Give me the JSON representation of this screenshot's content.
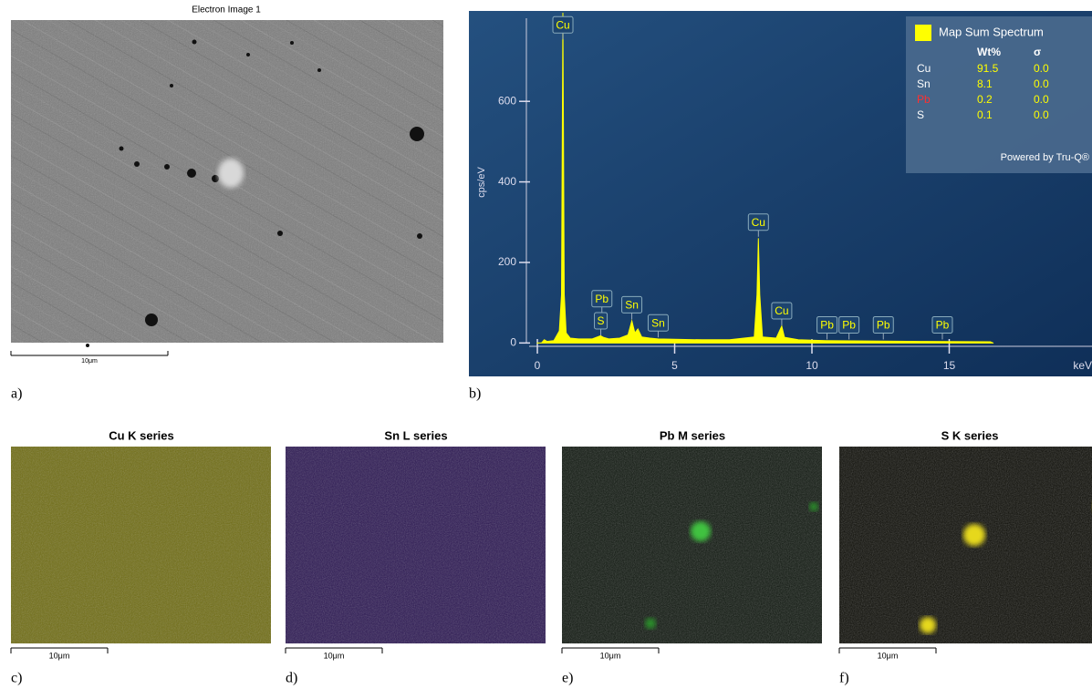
{
  "panel_a": {
    "label": "a)",
    "title": "Electron Image 1",
    "scale_bar": "10μm"
  },
  "panel_b": {
    "label": "b)"
  },
  "chart_data": {
    "type": "area",
    "x_label": "keV",
    "y_label": "cps/eV",
    "color": "#ffff00",
    "x": [
      0,
      0.15,
      0.25,
      0.35,
      0.6,
      0.8,
      0.88,
      0.93,
      0.98,
      1.05,
      1.2,
      1.5,
      2.0,
      2.3,
      2.4,
      2.6,
      3.0,
      3.3,
      3.44,
      3.55,
      3.66,
      3.8,
      4.1,
      4.4,
      5,
      6,
      7,
      7.9,
      8.0,
      8.05,
      8.1,
      8.2,
      8.7,
      8.9,
      9.0,
      9.5,
      10.5,
      12,
      14,
      16.5,
      16.6
    ],
    "values": [
      0,
      0,
      8,
      4,
      6,
      30,
      120,
      820,
      120,
      25,
      12,
      10,
      10,
      18,
      14,
      10,
      12,
      20,
      55,
      25,
      35,
      15,
      12,
      10,
      9,
      8,
      8,
      15,
      120,
      260,
      120,
      15,
      12,
      42,
      14,
      8,
      6,
      5,
      4,
      3,
      0
    ],
    "xlim": [
      -0.3,
      20.2
    ],
    "ylim": [
      -40,
      820
    ],
    "xticks": [
      0,
      5,
      10,
      15
    ],
    "yticks": [
      0,
      200,
      400,
      600
    ],
    "annotations": [
      {
        "text": "Cu",
        "x": 0.93,
        "y": 790
      },
      {
        "text": "Pb",
        "x": 2.35,
        "y": 110
      },
      {
        "text": "S",
        "x": 2.31,
        "y": 55
      },
      {
        "text": "Sn",
        "x": 3.44,
        "y": 95
      },
      {
        "text": "Sn",
        "x": 4.4,
        "y": 50
      },
      {
        "text": "Cu",
        "x": 8.05,
        "y": 300
      },
      {
        "text": "Cu",
        "x": 8.9,
        "y": 80
      },
      {
        "text": "Pb",
        "x": 10.55,
        "y": 45
      },
      {
        "text": "Pb",
        "x": 11.35,
        "y": 45
      },
      {
        "text": "Pb",
        "x": 12.6,
        "y": 45
      },
      {
        "text": "Pb",
        "x": 14.75,
        "y": 45
      }
    ],
    "legend": {
      "title": "Map Sum Spectrum",
      "columns": [
        "Wt%",
        "σ"
      ],
      "rows": [
        {
          "element": "Cu",
          "wt": "91.5",
          "sigma": "0.0",
          "color": "#ffffff"
        },
        {
          "element": "Sn",
          "wt": "8.1",
          "sigma": "0.0",
          "color": "#ffffff"
        },
        {
          "element": "Pb",
          "wt": "0.2",
          "sigma": "0.0",
          "color": "#ff3030"
        },
        {
          "element": "S",
          "wt": "0.1",
          "sigma": "0.0",
          "color": "#ffffff"
        }
      ],
      "footer": "Powered by Tru-Q®"
    }
  },
  "maps": [
    {
      "title": "Cu K series",
      "scale_bar": "10μm",
      "label": "c)"
    },
    {
      "title": "Sn L series",
      "scale_bar": "10μm",
      "label": "d)"
    },
    {
      "title": "Pb M series",
      "scale_bar": "10μm",
      "label": "e)"
    },
    {
      "title": "S K series",
      "scale_bar": "10μm",
      "label": "f)"
    }
  ]
}
